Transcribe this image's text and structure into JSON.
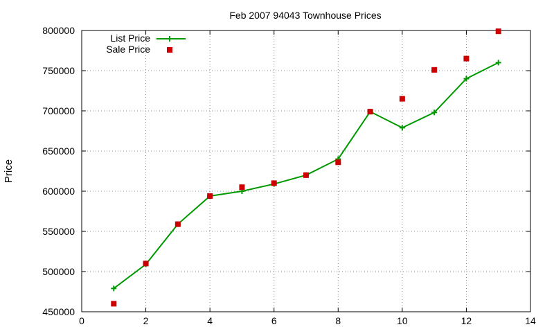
{
  "chart_data": {
    "type": "line",
    "title": "Feb 2007 94043 Townhouse Prices",
    "xlabel": "",
    "ylabel": "Price",
    "xlim": [
      0,
      14
    ],
    "ylim": [
      450000,
      800000
    ],
    "x_ticks": [
      0,
      2,
      4,
      6,
      8,
      10,
      12,
      14
    ],
    "y_ticks": [
      450000,
      500000,
      550000,
      600000,
      650000,
      700000,
      750000,
      800000
    ],
    "grid": true,
    "legend_position": "top-left",
    "series": [
      {
        "name": "List Price",
        "type": "line",
        "color": "#009900",
        "marker": "plus",
        "x": [
          1,
          2,
          3,
          4,
          5,
          6,
          7,
          8,
          9,
          10,
          11,
          12,
          13
        ],
        "y": [
          479000,
          509000,
          559000,
          594000,
          600000,
          609000,
          620000,
          640000,
          699000,
          679000,
          698000,
          740000,
          760000
        ]
      },
      {
        "name": "Sale Price",
        "type": "scatter",
        "color": "#cc0000",
        "marker": "square",
        "x": [
          1,
          2,
          3,
          4,
          5,
          6,
          7,
          8,
          9,
          10,
          11,
          12,
          13
        ],
        "y": [
          460000,
          510000,
          559000,
          594000,
          605000,
          610000,
          620000,
          636000,
          699000,
          715000,
          751000,
          765000,
          799000
        ]
      }
    ]
  }
}
